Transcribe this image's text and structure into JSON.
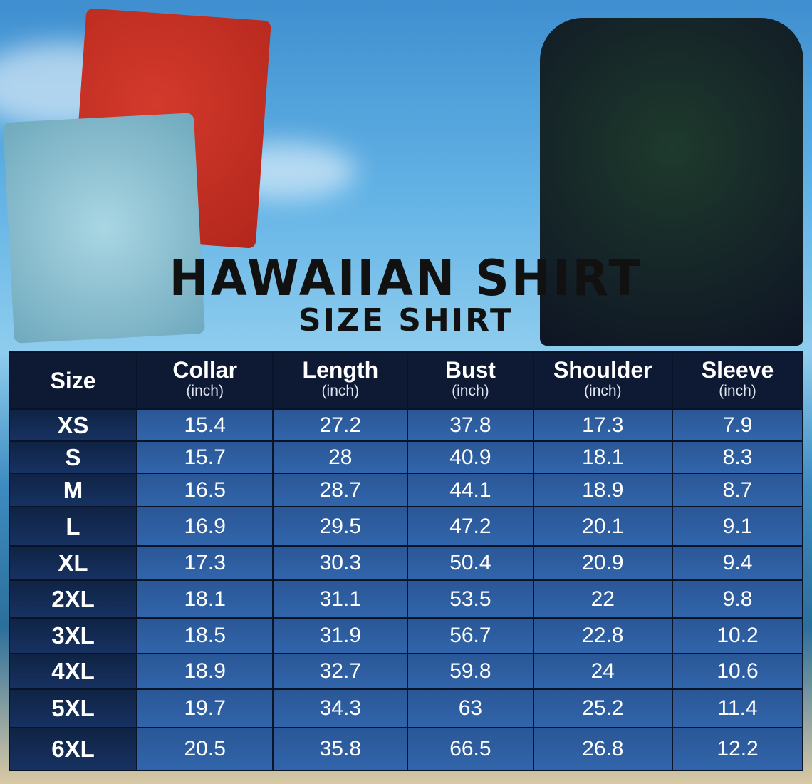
{
  "title": "HAWAIIAN SHIRT",
  "subtitle": "SIZE SHIRT",
  "colors": {
    "header_bg": "#0e1a33",
    "size_col_bg": "#173262",
    "cell_bg": "#2f62a8",
    "text": "#ffffff"
  },
  "chart_data": {
    "type": "table",
    "columns": [
      {
        "label": "Size",
        "unit": ""
      },
      {
        "label": "Collar",
        "unit": "(inch)"
      },
      {
        "label": "Length",
        "unit": "(inch)"
      },
      {
        "label": "Bust",
        "unit": "(inch)"
      },
      {
        "label": "Shoulder",
        "unit": "(inch)"
      },
      {
        "label": "Sleeve",
        "unit": "(inch)"
      }
    ],
    "rows": [
      [
        "XS",
        "15.4",
        "27.2",
        "37.8",
        "17.3",
        "7.9"
      ],
      [
        "S",
        "15.7",
        "28",
        "40.9",
        "18.1",
        "8.3"
      ],
      [
        "M",
        "16.5",
        "28.7",
        "44.1",
        "18.9",
        "8.7"
      ],
      [
        "L",
        "16.9",
        "29.5",
        "47.2",
        "20.1",
        "9.1"
      ],
      [
        "XL",
        "17.3",
        "30.3",
        "50.4",
        "20.9",
        "9.4"
      ],
      [
        "2XL",
        "18.1",
        "31.1",
        "53.5",
        "22",
        "9.8"
      ],
      [
        "3XL",
        "18.5",
        "31.9",
        "56.7",
        "22.8",
        "10.2"
      ],
      [
        "4XL",
        "18.9",
        "32.7",
        "59.8",
        "24",
        "10.6"
      ],
      [
        "5XL",
        "19.7",
        "34.3",
        "63",
        "25.2",
        "11.4"
      ],
      [
        "6XL",
        "20.5",
        "35.8",
        "66.5",
        "26.8",
        "12.2"
      ]
    ]
  }
}
